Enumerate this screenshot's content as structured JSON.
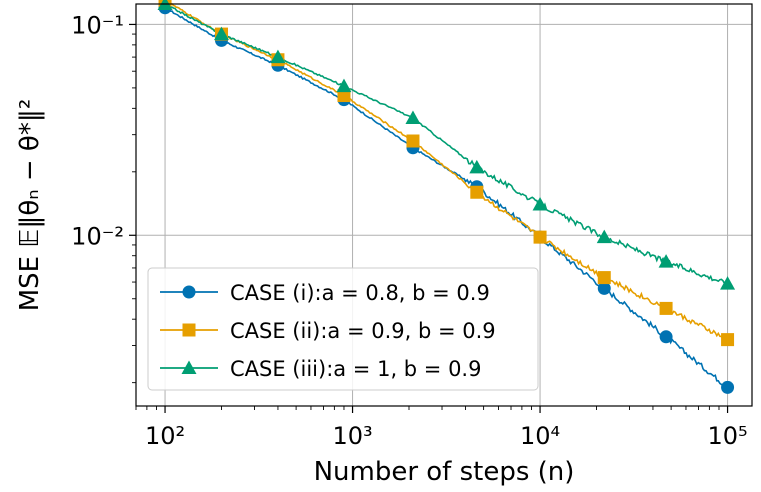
{
  "chart_data": {
    "type": "line",
    "xscale": "log",
    "yscale": "log",
    "xlabel": "Number of steps (n)",
    "ylabel": "MSE 𝔼‖θₙ − θ*‖²",
    "xlim": [
      70,
      135000
    ],
    "ylim": [
      0.00155,
      0.125
    ],
    "x_ticks": [
      {
        "value": 100,
        "label": "10²"
      },
      {
        "value": 1000,
        "label": "10³"
      },
      {
        "value": 10000,
        "label": "10⁴"
      },
      {
        "value": 100000,
        "label": "10⁵"
      }
    ],
    "y_ticks": [
      {
        "value": 0.1,
        "label": "10⁻¹"
      },
      {
        "value": 0.01,
        "label": "10⁻²"
      }
    ],
    "grid": true,
    "legend_position": "lower-left",
    "series": [
      {
        "name": "CASE (i):a = 0.8, b = 0.9",
        "color": "#0072b2",
        "marker": "circle",
        "x": [
          100,
          200,
          400,
          900,
          2100,
          4600,
          10000,
          22000,
          47000,
          100000
        ],
        "y": [
          0.12,
          0.084,
          0.064,
          0.044,
          0.026,
          0.017,
          0.0098,
          0.0056,
          0.0033,
          0.0019
        ]
      },
      {
        "name": "CASE (ii):a = 0.9, b = 0.9",
        "color": "#e69f00",
        "marker": "square",
        "x": [
          100,
          200,
          400,
          900,
          2100,
          4600,
          10000,
          22000,
          47000,
          100000
        ],
        "y": [
          0.13,
          0.09,
          0.068,
          0.046,
          0.028,
          0.016,
          0.0098,
          0.0063,
          0.0045,
          0.0032
        ]
      },
      {
        "name": "CASE (iii):a = 1, b = 0.9",
        "color": "#009e73",
        "marker": "triangle",
        "x": [
          100,
          200,
          400,
          900,
          2100,
          4600,
          10000,
          22000,
          47000,
          100000
        ],
        "y": [
          0.125,
          0.09,
          0.07,
          0.051,
          0.036,
          0.021,
          0.014,
          0.0098,
          0.0075,
          0.0059
        ]
      }
    ]
  }
}
